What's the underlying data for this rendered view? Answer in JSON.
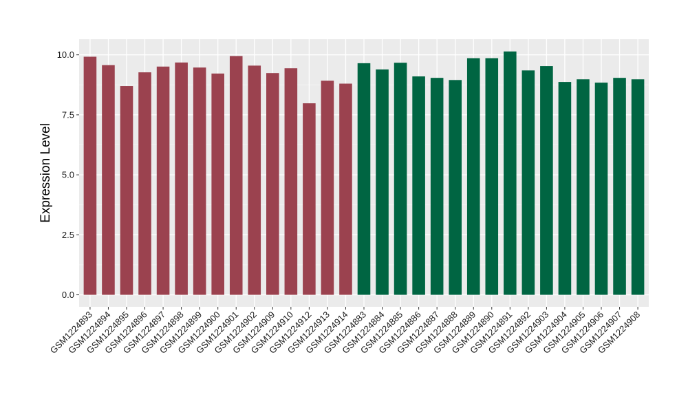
{
  "chart_data": {
    "type": "bar",
    "title": "",
    "xlabel": "",
    "ylabel": "Expression Level",
    "ylim": [
      -0.5,
      10.65
    ],
    "yticks": [
      0.0,
      2.5,
      5.0,
      7.5,
      10.0
    ],
    "ytick_labels": [
      "0.0",
      "2.5",
      "5.0",
      "7.5",
      "10.0"
    ],
    "grid": true,
    "legend": "none",
    "categories": [
      "GSM1224893",
      "GSM1224894",
      "GSM1224895",
      "GSM1224896",
      "GSM1224897",
      "GSM1224898",
      "GSM1224899",
      "GSM1224900",
      "GSM1224901",
      "GSM1224902",
      "GSM1224909",
      "GSM1224910",
      "GSM1224912",
      "GSM1224913",
      "GSM1224914",
      "GSM1224883",
      "GSM1224884",
      "GSM1224885",
      "GSM1224886",
      "GSM1224887",
      "GSM1224888",
      "GSM1224889",
      "GSM1224890",
      "GSM1224891",
      "GSM1224892",
      "GSM1224903",
      "GSM1224904",
      "GSM1224905",
      "GSM1224906",
      "GSM1224907",
      "GSM1224908"
    ],
    "values": [
      9.92,
      9.57,
      8.7,
      9.27,
      9.51,
      9.68,
      9.47,
      9.22,
      9.95,
      9.55,
      9.24,
      9.44,
      7.98,
      8.92,
      8.8,
      9.65,
      9.39,
      9.67,
      9.1,
      9.04,
      8.95,
      9.86,
      9.86,
      10.14,
      9.35,
      9.53,
      8.87,
      8.98,
      8.84,
      9.04,
      8.98
    ],
    "groups": [
      0,
      0,
      0,
      0,
      0,
      0,
      0,
      0,
      0,
      0,
      0,
      0,
      0,
      0,
      0,
      1,
      1,
      1,
      1,
      1,
      1,
      1,
      1,
      1,
      1,
      1,
      1,
      1,
      1,
      1,
      1
    ],
    "colors": {
      "group_colors": [
        "#9b424f",
        "#006542"
      ],
      "panel_background": "#ebebeb",
      "grid_major": "#ffffff",
      "grid_minor": "#f5f5f5"
    }
  }
}
